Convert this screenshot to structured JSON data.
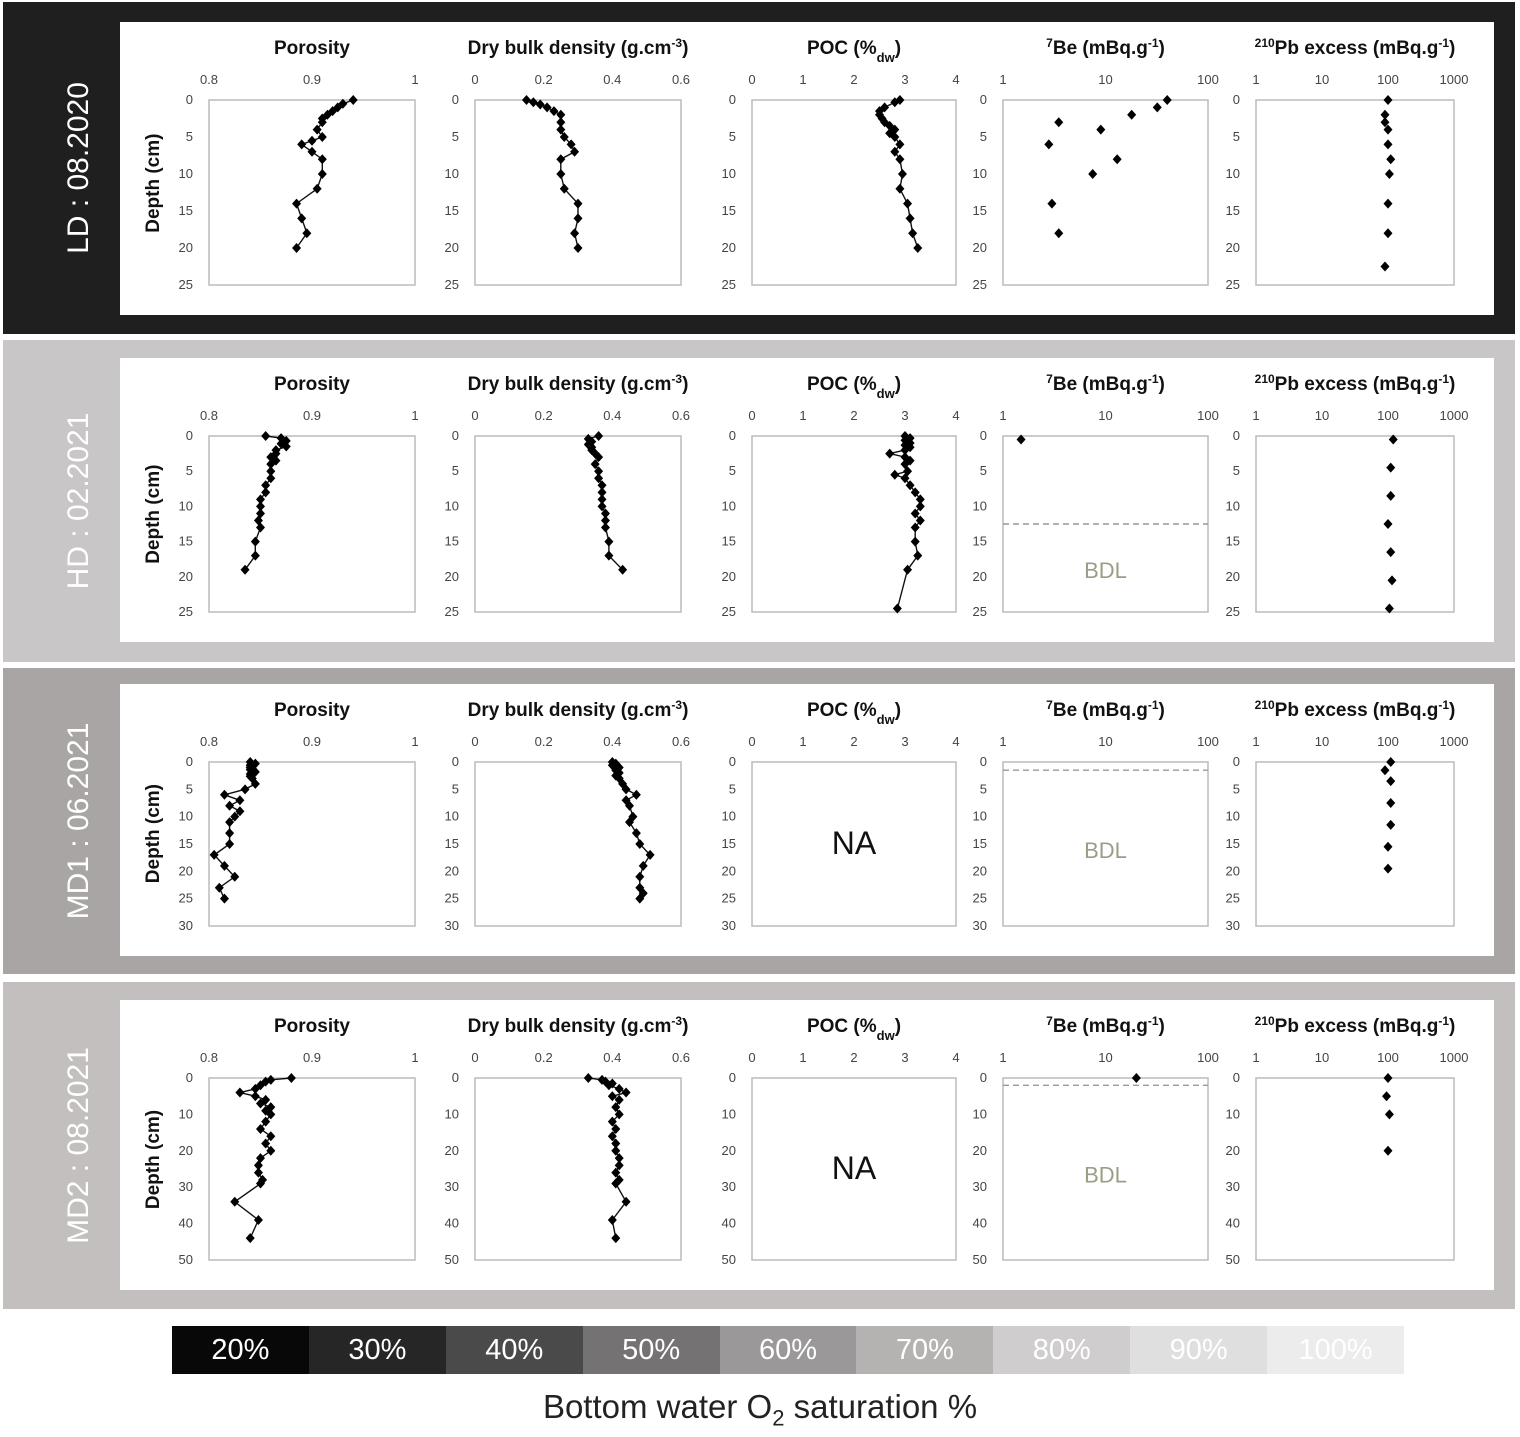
{
  "rows": [
    {
      "label": "LD : 08.2020",
      "bg": "#1f1f1f",
      "label_color": "#ffffff",
      "depth_max": 25,
      "depth_ticks": [
        0,
        5,
        10,
        15,
        20,
        25
      ],
      "porosity": [
        [
          0.94,
          0
        ],
        [
          0.93,
          0.5
        ],
        [
          0.925,
          1
        ],
        [
          0.92,
          1.5
        ],
        [
          0.915,
          2
        ],
        [
          0.91,
          2.5
        ],
        [
          0.91,
          3
        ],
        [
          0.905,
          4
        ],
        [
          0.91,
          5
        ],
        [
          0.9,
          5.5
        ],
        [
          0.89,
          6
        ],
        [
          0.9,
          7
        ],
        [
          0.91,
          8
        ],
        [
          0.91,
          10
        ],
        [
          0.905,
          12
        ],
        [
          0.885,
          14
        ],
        [
          0.89,
          16
        ],
        [
          0.895,
          18
        ],
        [
          0.885,
          20
        ]
      ],
      "dbd": [
        [
          0.15,
          0
        ],
        [
          0.17,
          0.3
        ],
        [
          0.19,
          0.6
        ],
        [
          0.21,
          1
        ],
        [
          0.23,
          1.5
        ],
        [
          0.25,
          2
        ],
        [
          0.25,
          3
        ],
        [
          0.25,
          4
        ],
        [
          0.26,
          5
        ],
        [
          0.28,
          6
        ],
        [
          0.29,
          7
        ],
        [
          0.25,
          8
        ],
        [
          0.25,
          10
        ],
        [
          0.26,
          12
        ],
        [
          0.3,
          14
        ],
        [
          0.3,
          16
        ],
        [
          0.29,
          18
        ],
        [
          0.3,
          20
        ]
      ],
      "poc": [
        [
          2.9,
          0
        ],
        [
          2.8,
          0.3
        ],
        [
          2.6,
          1
        ],
        [
          2.5,
          1.5
        ],
        [
          2.5,
          2
        ],
        [
          2.55,
          2.5
        ],
        [
          2.6,
          3
        ],
        [
          2.7,
          3.5
        ],
        [
          2.8,
          4
        ],
        [
          2.7,
          4.5
        ],
        [
          2.8,
          5
        ],
        [
          2.9,
          6
        ],
        [
          2.8,
          7
        ],
        [
          2.9,
          8
        ],
        [
          2.95,
          10
        ],
        [
          2.9,
          12
        ],
        [
          3.05,
          14
        ],
        [
          3.1,
          16
        ],
        [
          3.15,
          18
        ],
        [
          3.25,
          20
        ]
      ],
      "poc_na": false,
      "be": [
        [
          40,
          0
        ],
        [
          32,
          1
        ],
        [
          18,
          2
        ],
        [
          3.5,
          3
        ],
        [
          9,
          4
        ],
        [
          2.8,
          6
        ],
        [
          13,
          8
        ],
        [
          7.5,
          10
        ],
        [
          3,
          14
        ],
        [
          3.5,
          18
        ]
      ],
      "be_bdl_depth": null,
      "pb": [
        [
          100,
          0
        ],
        [
          90,
          2
        ],
        [
          90,
          3
        ],
        [
          100,
          4
        ],
        [
          100,
          6
        ],
        [
          110,
          8
        ],
        [
          105,
          10
        ],
        [
          100,
          14
        ],
        [
          100,
          18
        ],
        [
          90,
          22.5
        ]
      ]
    },
    {
      "label": "HD : 02.2021",
      "bg": "#c8c6c6",
      "label_color": "#ffffff",
      "depth_max": 25,
      "depth_ticks": [
        0,
        5,
        10,
        15,
        20,
        25
      ],
      "porosity": [
        [
          0.855,
          0
        ],
        [
          0.87,
          0.3
        ],
        [
          0.875,
          0.7
        ],
        [
          0.87,
          1.1
        ],
        [
          0.875,
          1.5
        ],
        [
          0.865,
          2
        ],
        [
          0.865,
          2.5
        ],
        [
          0.86,
          3
        ],
        [
          0.865,
          3.5
        ],
        [
          0.86,
          4
        ],
        [
          0.86,
          5
        ],
        [
          0.86,
          6
        ],
        [
          0.855,
          7
        ],
        [
          0.855,
          8
        ],
        [
          0.85,
          9
        ],
        [
          0.85,
          10
        ],
        [
          0.85,
          11
        ],
        [
          0.848,
          12
        ],
        [
          0.85,
          13
        ],
        [
          0.845,
          15
        ],
        [
          0.845,
          17
        ],
        [
          0.835,
          19
        ]
      ],
      "dbd": [
        [
          0.36,
          0
        ],
        [
          0.33,
          0.4
        ],
        [
          0.34,
          0.8
        ],
        [
          0.33,
          1.2
        ],
        [
          0.34,
          1.6
        ],
        [
          0.34,
          2
        ],
        [
          0.35,
          2.5
        ],
        [
          0.36,
          3
        ],
        [
          0.35,
          4
        ],
        [
          0.36,
          5
        ],
        [
          0.36,
          6
        ],
        [
          0.37,
          7
        ],
        [
          0.37,
          8
        ],
        [
          0.37,
          9
        ],
        [
          0.37,
          10
        ],
        [
          0.38,
          11
        ],
        [
          0.38,
          12
        ],
        [
          0.38,
          13
        ],
        [
          0.39,
          15
        ],
        [
          0.39,
          17
        ],
        [
          0.43,
          19
        ]
      ],
      "poc": [
        [
          3.0,
          0
        ],
        [
          3.1,
          0.3
        ],
        [
          3.0,
          0.6
        ],
        [
          3.1,
          1
        ],
        [
          3.0,
          1.3
        ],
        [
          3.1,
          1.6
        ],
        [
          3.0,
          2
        ],
        [
          2.7,
          2.5
        ],
        [
          3.0,
          3
        ],
        [
          3.1,
          3.5
        ],
        [
          3.0,
          4
        ],
        [
          3.05,
          5
        ],
        [
          2.8,
          5.5
        ],
        [
          3.0,
          6
        ],
        [
          3.1,
          7
        ],
        [
          3.2,
          8
        ],
        [
          3.3,
          9
        ],
        [
          3.3,
          10
        ],
        [
          3.2,
          11
        ],
        [
          3.3,
          12
        ],
        [
          3.2,
          13
        ],
        [
          3.2,
          15
        ],
        [
          3.25,
          17
        ],
        [
          3.05,
          19
        ],
        [
          2.85,
          24.5
        ]
      ],
      "poc_na": false,
      "be": [
        [
          1.5,
          0.5
        ]
      ],
      "be_bdl_depth": 12.5,
      "pb": [
        [
          120,
          0.5
        ],
        [
          110,
          4.5
        ],
        [
          110,
          8.5
        ],
        [
          100,
          12.5
        ],
        [
          110,
          16.5
        ],
        [
          115,
          20.5
        ],
        [
          105,
          24.5
        ]
      ]
    },
    {
      "label": "MD1 : 06.2021",
      "bg": "#aaa5a5",
      "label_color": "#ffffff",
      "depth_max": 30,
      "depth_ticks": [
        0,
        5,
        10,
        15,
        20,
        25,
        30
      ],
      "porosity": [
        [
          0.84,
          0
        ],
        [
          0.845,
          0.3
        ],
        [
          0.84,
          0.6
        ],
        [
          0.84,
          1
        ],
        [
          0.84,
          1.4
        ],
        [
          0.845,
          1.8
        ],
        [
          0.84,
          2.2
        ],
        [
          0.84,
          2.6
        ],
        [
          0.842,
          3
        ],
        [
          0.845,
          4
        ],
        [
          0.835,
          5
        ],
        [
          0.815,
          6
        ],
        [
          0.83,
          7
        ],
        [
          0.82,
          8
        ],
        [
          0.83,
          9
        ],
        [
          0.825,
          10
        ],
        [
          0.82,
          11
        ],
        [
          0.82,
          13
        ],
        [
          0.82,
          15
        ],
        [
          0.805,
          17
        ],
        [
          0.815,
          19
        ],
        [
          0.825,
          21
        ],
        [
          0.81,
          23
        ],
        [
          0.815,
          25
        ]
      ],
      "dbd": [
        [
          0.4,
          0
        ],
        [
          0.41,
          0.3
        ],
        [
          0.4,
          0.6
        ],
        [
          0.42,
          1
        ],
        [
          0.41,
          1.5
        ],
        [
          0.42,
          2
        ],
        [
          0.41,
          2.5
        ],
        [
          0.42,
          3
        ],
        [
          0.43,
          4
        ],
        [
          0.44,
          5
        ],
        [
          0.47,
          6
        ],
        [
          0.44,
          7
        ],
        [
          0.45,
          8
        ],
        [
          0.46,
          10
        ],
        [
          0.45,
          11
        ],
        [
          0.47,
          13
        ],
        [
          0.48,
          15
        ],
        [
          0.51,
          17
        ],
        [
          0.49,
          19
        ],
        [
          0.48,
          21
        ],
        [
          0.48,
          23
        ],
        [
          0.49,
          24
        ],
        [
          0.48,
          25
        ]
      ],
      "poc": [],
      "poc_na": true,
      "be": [],
      "be_bdl_depth": 1.5,
      "pb": [
        [
          110,
          0
        ],
        [
          90,
          1.5
        ],
        [
          110,
          3.5
        ],
        [
          110,
          7.5
        ],
        [
          110,
          11.5
        ],
        [
          100,
          15.5
        ],
        [
          100,
          19.5
        ]
      ]
    },
    {
      "label": "MD2 : 08.2021",
      "bg": "#c3bfbf",
      "label_color": "#ffffff",
      "depth_max": 50,
      "depth_ticks": [
        0,
        10,
        20,
        30,
        40,
        50
      ],
      "porosity": [
        [
          0.88,
          0
        ],
        [
          0.86,
          0.5
        ],
        [
          0.855,
          1
        ],
        [
          0.85,
          2
        ],
        [
          0.845,
          3
        ],
        [
          0.83,
          4
        ],
        [
          0.845,
          5
        ],
        [
          0.855,
          6
        ],
        [
          0.85,
          7
        ],
        [
          0.86,
          8
        ],
        [
          0.855,
          9
        ],
        [
          0.86,
          10
        ],
        [
          0.855,
          12
        ],
        [
          0.85,
          14
        ],
        [
          0.86,
          16
        ],
        [
          0.855,
          18
        ],
        [
          0.86,
          20
        ],
        [
          0.85,
          22
        ],
        [
          0.848,
          24
        ],
        [
          0.848,
          26
        ],
        [
          0.852,
          28
        ],
        [
          0.85,
          29
        ],
        [
          0.825,
          34
        ],
        [
          0.848,
          39
        ],
        [
          0.84,
          44
        ]
      ],
      "dbd": [
        [
          0.33,
          0
        ],
        [
          0.37,
          0.5
        ],
        [
          0.38,
          1
        ],
        [
          0.4,
          1.5
        ],
        [
          0.39,
          2
        ],
        [
          0.42,
          3
        ],
        [
          0.44,
          4
        ],
        [
          0.4,
          5
        ],
        [
          0.42,
          6
        ],
        [
          0.41,
          8
        ],
        [
          0.42,
          10
        ],
        [
          0.4,
          12
        ],
        [
          0.41,
          14
        ],
        [
          0.4,
          16
        ],
        [
          0.41,
          18
        ],
        [
          0.41,
          20
        ],
        [
          0.42,
          22
        ],
        [
          0.42,
          24
        ],
        [
          0.41,
          26
        ],
        [
          0.42,
          28
        ],
        [
          0.41,
          29
        ],
        [
          0.44,
          34
        ],
        [
          0.4,
          39
        ],
        [
          0.41,
          44
        ]
      ],
      "poc": [],
      "poc_na": true,
      "be": [
        [
          20,
          0
        ]
      ],
      "be_bdl_depth": 2,
      "pb": [
        [
          100,
          0
        ],
        [
          95,
          5
        ],
        [
          105,
          10
        ],
        [
          100,
          20
        ]
      ]
    }
  ],
  "panels": {
    "porosity": {
      "title": "Porosity",
      "xlim": [
        0.8,
        1
      ],
      "xticks": [
        "0.8",
        "0.9",
        "1"
      ]
    },
    "dbd": {
      "title": "Dry bulk density (g.cm",
      "title_sup": "-3",
      "title_end": ")",
      "xlim": [
        0,
        0.6
      ],
      "xticks": [
        "0",
        "0.2",
        "0.4",
        "0.6"
      ]
    },
    "poc": {
      "title": "POC (%",
      "title_sub": "dw",
      "title_end": ")",
      "xlim": [
        0,
        4
      ],
      "xticks": [
        "0",
        "1",
        "2",
        "3",
        "4"
      ]
    },
    "be": {
      "title_sup": "7",
      "title": "Be (mBq.g",
      "title_sup2": "-1",
      "title_end": ")",
      "xlim": [
        1,
        100
      ],
      "log": true,
      "xticks": [
        "1",
        "10",
        "100"
      ]
    },
    "pb": {
      "title_sup": "210",
      "title": "Pb excess (mBq.g",
      "title_sup2": "-1",
      "title_end": ")",
      "xlim": [
        1,
        1000
      ],
      "log": true,
      "xticks": [
        "1",
        "10",
        "100",
        "1000"
      ]
    }
  },
  "ylabel": "Depth (cm)",
  "na_label": "NA",
  "bdl_label": "BDL",
  "legend": {
    "items": [
      {
        "label": "20%",
        "color": "#080808",
        "text": "#ffffff"
      },
      {
        "label": "30%",
        "color": "#262626",
        "text": "#ffffff"
      },
      {
        "label": "40%",
        "color": "#4a4a4a",
        "text": "#ffffff"
      },
      {
        "label": "50%",
        "color": "#747272",
        "text": "#ffffff"
      },
      {
        "label": "60%",
        "color": "#9a9898",
        "text": "#ffffff"
      },
      {
        "label": "70%",
        "color": "#b5b2b2",
        "text": "#ffffff"
      },
      {
        "label": "80%",
        "color": "#cfcdcd",
        "text": "#ffffff"
      },
      {
        "label": "90%",
        "color": "#e0dfdf",
        "text": "#ffffff"
      },
      {
        "label": "100%",
        "color": "#ececec",
        "text": "#ffffff"
      }
    ],
    "caption_pre": "Bottom water O",
    "caption_sub": "2",
    "caption_post": " saturation %"
  },
  "chart_data": {
    "type": "scatter",
    "description_series": [
      "Porosity",
      "Dry bulk density",
      "POC",
      "7Be",
      "210Pb excess"
    ],
    "ylabel": "Depth (cm)",
    "rows": [
      "LD : 08.2020",
      "HD : 02.2021",
      "MD1 : 06.2021",
      "MD2 : 08.2021"
    ]
  }
}
